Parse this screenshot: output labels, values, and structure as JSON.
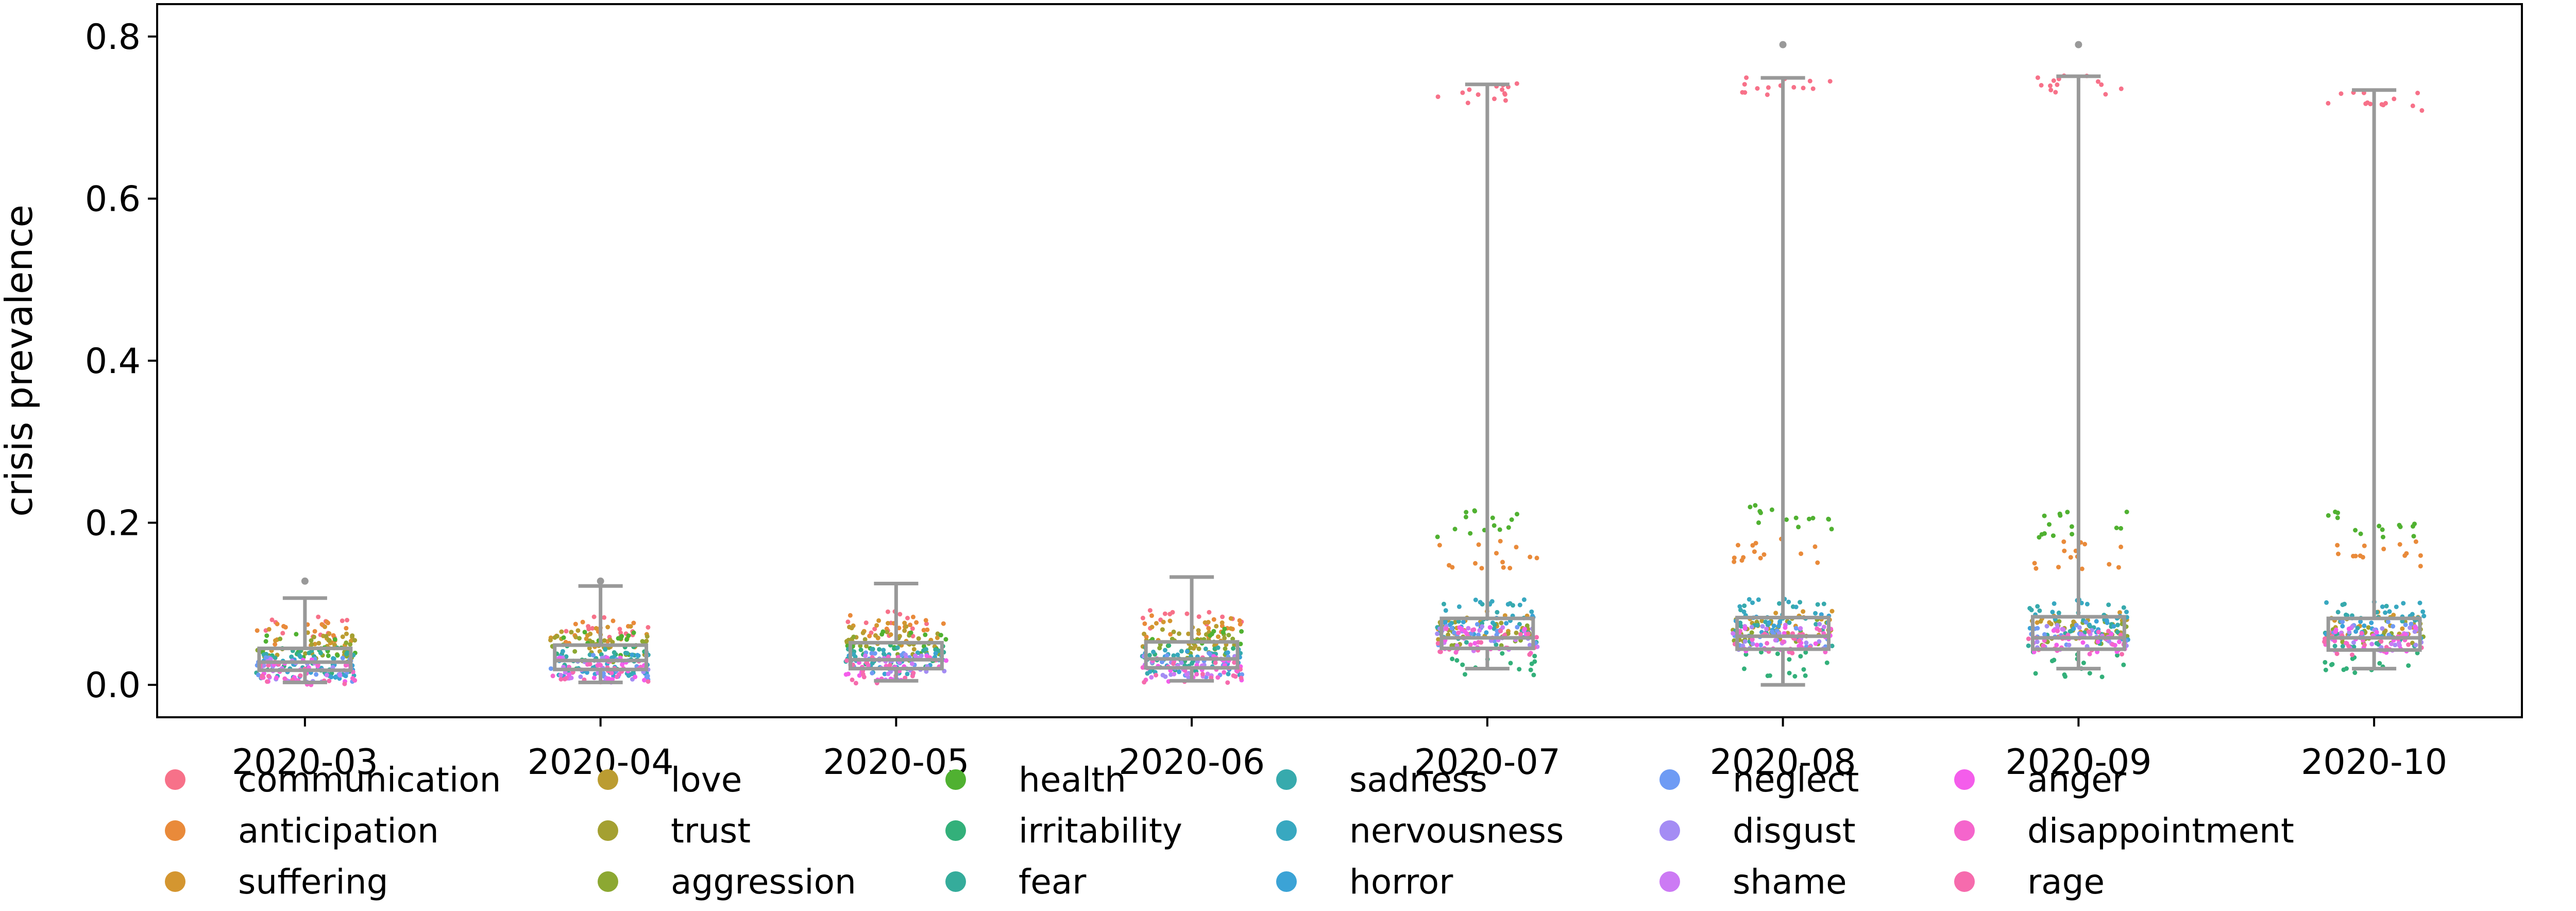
{
  "chart_data": {
    "type": "box+strip",
    "title": "",
    "xlabel": "",
    "ylabel": "crisis prevalence",
    "ylim": [
      -0.04,
      0.84
    ],
    "yticks": [
      0.0,
      0.2,
      0.4,
      0.6,
      0.8
    ],
    "ytick_labels": [
      "0.0",
      "0.2",
      "0.4",
      "0.6",
      "0.8"
    ],
    "grid": false,
    "legend_position": "bottom",
    "categories": [
      "2020-03",
      "2020-04",
      "2020-05",
      "2020-06",
      "2020-07",
      "2020-08",
      "2020-09",
      "2020-10"
    ],
    "box_color": "#999999",
    "boxes": [
      {
        "category": "2020-03",
        "whisker_low": 0.003,
        "q1": 0.018,
        "median": 0.028,
        "q3": 0.045,
        "whisker_high": 0.107,
        "outliers": [
          0.128
        ]
      },
      {
        "category": "2020-04",
        "whisker_low": 0.003,
        "q1": 0.019,
        "median": 0.03,
        "q3": 0.049,
        "whisker_high": 0.122,
        "outliers": [
          0.128
        ]
      },
      {
        "category": "2020-05",
        "whisker_low": 0.005,
        "q1": 0.02,
        "median": 0.031,
        "q3": 0.052,
        "whisker_high": 0.125,
        "outliers": []
      },
      {
        "category": "2020-06",
        "whisker_low": 0.005,
        "q1": 0.021,
        "median": 0.032,
        "q3": 0.053,
        "whisker_high": 0.133,
        "outliers": []
      },
      {
        "category": "2020-07",
        "whisker_low": 0.02,
        "q1": 0.045,
        "median": 0.058,
        "q3": 0.082,
        "whisker_high": 0.741,
        "outliers": []
      },
      {
        "category": "2020-08",
        "whisker_low": 0.0,
        "q1": 0.044,
        "median": 0.06,
        "q3": 0.083,
        "whisker_high": 0.749,
        "outliers": [
          0.79
        ]
      },
      {
        "category": "2020-09",
        "whisker_low": 0.02,
        "q1": 0.044,
        "median": 0.058,
        "q3": 0.084,
        "whisker_high": 0.751,
        "outliers": [
          0.79
        ]
      },
      {
        "category": "2020-10",
        "whisker_low": 0.02,
        "q1": 0.043,
        "median": 0.058,
        "q3": 0.082,
        "whisker_high": 0.734,
        "outliers": []
      }
    ],
    "series": [
      {
        "name": "communication",
        "color": "#f77189",
        "values": [
          0.068,
          0.072,
          0.076,
          0.078,
          0.73,
          0.74,
          0.74,
          0.72
        ]
      },
      {
        "name": "anticipation",
        "color": "#e98a3a",
        "values": [
          0.062,
          0.066,
          0.07,
          0.07,
          0.16,
          0.165,
          0.16,
          0.16
        ]
      },
      {
        "name": "suffering",
        "color": "#d49630",
        "values": [
          0.058,
          0.062,
          0.064,
          0.066,
          0.075,
          0.076,
          0.076,
          0.075
        ]
      },
      {
        "name": "love",
        "color": "#bb9c31",
        "values": [
          0.052,
          0.056,
          0.058,
          0.06,
          0.07,
          0.071,
          0.07,
          0.07
        ]
      },
      {
        "name": "trust",
        "color": "#a4a031",
        "values": [
          0.046,
          0.05,
          0.052,
          0.054,
          0.066,
          0.067,
          0.066,
          0.066
        ]
      },
      {
        "name": "aggression",
        "color": "#8ca832",
        "values": [
          0.042,
          0.044,
          0.046,
          0.048,
          0.064,
          0.065,
          0.064,
          0.064
        ]
      },
      {
        "name": "health",
        "color": "#50b131",
        "values": [
          0.05,
          0.052,
          0.054,
          0.056,
          0.2,
          0.21,
          0.2,
          0.2
        ]
      },
      {
        "name": "irritability",
        "color": "#33b07a",
        "values": [
          0.03,
          0.032,
          0.034,
          0.034,
          0.025,
          0.026,
          0.025,
          0.025
        ]
      },
      {
        "name": "fear",
        "color": "#35ac9b",
        "values": [
          0.028,
          0.03,
          0.032,
          0.032,
          0.06,
          0.061,
          0.06,
          0.06
        ]
      },
      {
        "name": "sadness",
        "color": "#37aaad",
        "values": [
          0.026,
          0.028,
          0.03,
          0.03,
          0.085,
          0.086,
          0.085,
          0.085
        ]
      },
      {
        "name": "nervousness",
        "color": "#38a8c0",
        "values": [
          0.024,
          0.026,
          0.028,
          0.028,
          0.09,
          0.09,
          0.09,
          0.09
        ]
      },
      {
        "name": "horror",
        "color": "#3ba3d6",
        "values": [
          0.022,
          0.024,
          0.026,
          0.026,
          0.07,
          0.072,
          0.07,
          0.07
        ]
      },
      {
        "name": "neglect",
        "color": "#6e9bf4",
        "values": [
          0.02,
          0.022,
          0.024,
          0.024,
          0.062,
          0.063,
          0.062,
          0.062
        ]
      },
      {
        "name": "disgust",
        "color": "#a48cf4",
        "values": [
          0.018,
          0.02,
          0.022,
          0.022,
          0.058,
          0.059,
          0.058,
          0.058
        ]
      },
      {
        "name": "shame",
        "color": "#cc7af4",
        "values": [
          0.017,
          0.019,
          0.021,
          0.021,
          0.057,
          0.058,
          0.057,
          0.057
        ]
      },
      {
        "name": "anger",
        "color": "#f45deb",
        "values": [
          0.016,
          0.018,
          0.02,
          0.02,
          0.055,
          0.056,
          0.055,
          0.055
        ]
      },
      {
        "name": "disappointment",
        "color": "#f565cc",
        "values": [
          0.015,
          0.017,
          0.019,
          0.019,
          0.054,
          0.055,
          0.054,
          0.054
        ]
      },
      {
        "name": "rage",
        "color": "#f66bad",
        "values": [
          0.014,
          0.016,
          0.018,
          0.018,
          0.052,
          0.053,
          0.052,
          0.052
        ]
      }
    ]
  }
}
